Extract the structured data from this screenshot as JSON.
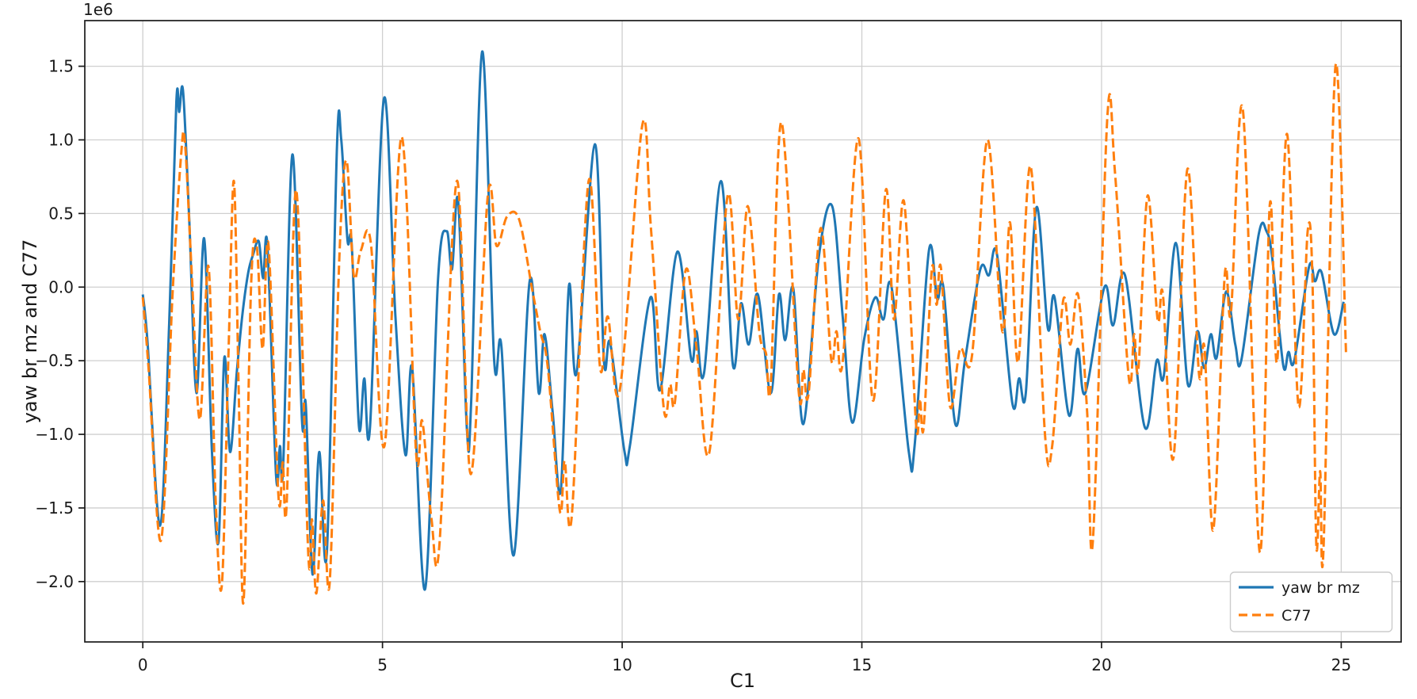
{
  "chart_data": {
    "type": "line",
    "title": "",
    "xlabel": "C1",
    "ylabel": "yaw br mz and C77",
    "y_offset_label": "1e6",
    "y_unit_multiplier": 1000000,
    "grid": true,
    "background_color": "#ffffff",
    "grid_color": "#cfcfcf",
    "spine_color": "#1a1a1a",
    "x_axis": {
      "range": [
        -1.21,
        26.25
      ],
      "tick_values": [
        0,
        5,
        10,
        15,
        20,
        25
      ],
      "tick_labels": [
        "0",
        "5",
        "10",
        "15",
        "20",
        "25"
      ]
    },
    "y_axis": {
      "range": [
        -2.41,
        1.81
      ],
      "tick_values": [
        1.5,
        1.0,
        0.5,
        0.0,
        -0.5,
        -1.0,
        -1.5,
        -2.0
      ],
      "tick_labels": [
        "1.5",
        "1.0",
        "0.5",
        "0.0",
        "−0.5",
        "−1.0",
        "−1.5",
        "−2.0"
      ]
    },
    "legend": {
      "position": "lower right"
    },
    "series": [
      {
        "name": "yaw br mz",
        "color": "#1f77b4",
        "line_style": "solid",
        "points": [
          [
            0.0,
            -0.05
          ],
          [
            0.1,
            -0.38
          ],
          [
            0.36,
            -1.62
          ],
          [
            0.55,
            -0.25
          ],
          [
            0.7,
            1.26
          ],
          [
            0.76,
            1.19
          ],
          [
            0.84,
            1.33
          ],
          [
            0.97,
            0.45
          ],
          [
            1.12,
            -0.72
          ],
          [
            1.28,
            0.33
          ],
          [
            1.44,
            -1.1
          ],
          [
            1.58,
            -1.73
          ],
          [
            1.7,
            -0.48
          ],
          [
            1.82,
            -1.12
          ],
          [
            1.96,
            -0.58
          ],
          [
            2.08,
            -0.18
          ],
          [
            2.2,
            0.1
          ],
          [
            2.3,
            0.22
          ],
          [
            2.42,
            0.31
          ],
          [
            2.51,
            0.06
          ],
          [
            2.6,
            0.28
          ],
          [
            2.78,
            -1.28
          ],
          [
            2.86,
            -1.08
          ],
          [
            2.93,
            -1.2
          ],
          [
            3.12,
            0.9
          ],
          [
            3.32,
            -0.9
          ],
          [
            3.4,
            -0.8
          ],
          [
            3.54,
            -1.95
          ],
          [
            3.68,
            -1.12
          ],
          [
            3.84,
            -1.8
          ],
          [
            4.05,
            0.95
          ],
          [
            4.14,
            1.0
          ],
          [
            4.27,
            0.32
          ],
          [
            4.36,
            0.28
          ],
          [
            4.51,
            -0.95
          ],
          [
            4.62,
            -0.62
          ],
          [
            4.74,
            -0.95
          ],
          [
            5.03,
            1.28
          ],
          [
            5.27,
            -0.2
          ],
          [
            5.48,
            -1.14
          ],
          [
            5.62,
            -0.55
          ],
          [
            5.89,
            -2.05
          ],
          [
            6.16,
            0.06
          ],
          [
            6.34,
            0.38
          ],
          [
            6.45,
            0.12
          ],
          [
            6.58,
            0.58
          ],
          [
            6.76,
            -0.96
          ],
          [
            6.85,
            -0.78
          ],
          [
            7.08,
            1.6
          ],
          [
            7.33,
            -0.5
          ],
          [
            7.48,
            -0.4
          ],
          [
            7.74,
            -1.82
          ],
          [
            8.07,
            0.04
          ],
          [
            8.26,
            -0.72
          ],
          [
            8.38,
            -0.32
          ],
          [
            8.55,
            -0.85
          ],
          [
            8.72,
            -1.38
          ],
          [
            8.89,
            0.01
          ],
          [
            9.05,
            -0.58
          ],
          [
            9.43,
            0.97
          ],
          [
            9.62,
            -0.5
          ],
          [
            9.75,
            -0.38
          ],
          [
            10.05,
            -1.12
          ],
          [
            10.16,
            -1.08
          ],
          [
            10.59,
            -0.07
          ],
          [
            10.79,
            -0.7
          ],
          [
            11.15,
            0.24
          ],
          [
            11.44,
            -0.49
          ],
          [
            11.55,
            -0.3
          ],
          [
            11.71,
            -0.58
          ],
          [
            12.06,
            0.72
          ],
          [
            12.31,
            -0.53
          ],
          [
            12.48,
            -0.11
          ],
          [
            12.64,
            -0.39
          ],
          [
            12.83,
            -0.05
          ],
          [
            13.1,
            -0.72
          ],
          [
            13.27,
            -0.05
          ],
          [
            13.4,
            -0.36
          ],
          [
            13.57,
            -0.01
          ],
          [
            13.78,
            -0.93
          ],
          [
            14.1,
            0.2
          ],
          [
            14.38,
            0.55
          ],
          [
            14.6,
            -0.2
          ],
          [
            14.8,
            -0.92
          ],
          [
            15.05,
            -0.35
          ],
          [
            15.28,
            -0.07
          ],
          [
            15.45,
            -0.22
          ],
          [
            15.62,
            0.0
          ],
          [
            15.98,
            -1.12
          ],
          [
            16.1,
            -1.08
          ],
          [
            16.4,
            0.25
          ],
          [
            16.57,
            -0.08
          ],
          [
            16.7,
            0.0
          ],
          [
            16.95,
            -0.93
          ],
          [
            17.15,
            -0.5
          ],
          [
            17.47,
            0.12
          ],
          [
            17.65,
            0.08
          ],
          [
            17.82,
            0.22
          ],
          [
            18.14,
            -0.79
          ],
          [
            18.28,
            -0.62
          ],
          [
            18.42,
            -0.72
          ],
          [
            18.64,
            0.54
          ],
          [
            18.88,
            -0.28
          ],
          [
            19.02,
            -0.07
          ],
          [
            19.32,
            -0.87
          ],
          [
            19.5,
            -0.42
          ],
          [
            19.66,
            -0.72
          ],
          [
            20.06,
            0.0
          ],
          [
            20.24,
            -0.26
          ],
          [
            20.49,
            0.08
          ],
          [
            20.9,
            -0.95
          ],
          [
            21.15,
            -0.5
          ],
          [
            21.3,
            -0.6
          ],
          [
            21.55,
            0.3
          ],
          [
            21.8,
            -0.66
          ],
          [
            22.0,
            -0.3
          ],
          [
            22.14,
            -0.55
          ],
          [
            22.28,
            -0.32
          ],
          [
            22.4,
            -0.48
          ],
          [
            22.6,
            -0.03
          ],
          [
            22.79,
            -0.39
          ],
          [
            22.92,
            -0.49
          ],
          [
            23.28,
            0.36
          ],
          [
            23.44,
            0.38
          ],
          [
            23.56,
            0.2
          ],
          [
            23.79,
            -0.53
          ],
          [
            23.9,
            -0.44
          ],
          [
            24.02,
            -0.5
          ],
          [
            24.33,
            0.14
          ],
          [
            24.45,
            0.04
          ],
          [
            24.59,
            0.1
          ],
          [
            24.85,
            -0.32
          ],
          [
            25.05,
            -0.1
          ]
        ]
      },
      {
        "name": "C77",
        "color": "#ff7f0e",
        "line_style": "dashed",
        "points": [
          [
            0.0,
            -0.07
          ],
          [
            0.12,
            -0.55
          ],
          [
            0.38,
            -1.72
          ],
          [
            0.62,
            -0.05
          ],
          [
            0.8,
            0.9
          ],
          [
            0.88,
            0.98
          ],
          [
            1.02,
            0.1
          ],
          [
            1.19,
            -0.9
          ],
          [
            1.37,
            0.14
          ],
          [
            1.52,
            -1.45
          ],
          [
            1.65,
            -2.02
          ],
          [
            1.79,
            -0.42
          ],
          [
            1.9,
            0.72
          ],
          [
            2.0,
            -0.7
          ],
          [
            2.1,
            -2.14
          ],
          [
            2.26,
            0.02
          ],
          [
            2.38,
            0.27
          ],
          [
            2.5,
            -0.42
          ],
          [
            2.62,
            0.29
          ],
          [
            2.83,
            -1.42
          ],
          [
            2.92,
            -1.19
          ],
          [
            3.0,
            -1.48
          ],
          [
            3.2,
            0.66
          ],
          [
            3.45,
            -1.8
          ],
          [
            3.53,
            -1.58
          ],
          [
            3.62,
            -2.08
          ],
          [
            3.76,
            -1.45
          ],
          [
            3.9,
            -2.0
          ],
          [
            4.1,
            0.2
          ],
          [
            4.25,
            0.86
          ],
          [
            4.4,
            0.08
          ],
          [
            4.55,
            0.25
          ],
          [
            4.76,
            0.29
          ],
          [
            5.04,
            -1.08
          ],
          [
            5.4,
            1.02
          ],
          [
            5.7,
            -1.12
          ],
          [
            5.83,
            -0.91
          ],
          [
            6.02,
            -1.57
          ],
          [
            6.19,
            -1.74
          ],
          [
            6.55,
            0.72
          ],
          [
            6.84,
            -1.27
          ],
          [
            7.2,
            0.63
          ],
          [
            7.38,
            0.28
          ],
          [
            7.6,
            0.48
          ],
          [
            7.85,
            0.46
          ],
          [
            8.12,
            -0.01
          ],
          [
            8.29,
            -0.3
          ],
          [
            8.45,
            -0.55
          ],
          [
            8.7,
            -1.52
          ],
          [
            8.8,
            -1.18
          ],
          [
            8.95,
            -1.55
          ],
          [
            9.3,
            0.72
          ],
          [
            9.54,
            -0.55
          ],
          [
            9.7,
            -0.2
          ],
          [
            9.95,
            -0.7
          ],
          [
            10.42,
            1.1
          ],
          [
            10.6,
            0.4
          ],
          [
            10.87,
            -0.83
          ],
          [
            11.0,
            -0.66
          ],
          [
            11.1,
            -0.78
          ],
          [
            11.33,
            0.12
          ],
          [
            11.55,
            -0.41
          ],
          [
            11.82,
            -1.12
          ],
          [
            12.2,
            0.62
          ],
          [
            12.42,
            -0.22
          ],
          [
            12.62,
            0.55
          ],
          [
            12.86,
            -0.3
          ],
          [
            13.0,
            -0.45
          ],
          [
            13.1,
            -0.66
          ],
          [
            13.32,
            1.12
          ],
          [
            13.68,
            -0.7
          ],
          [
            13.78,
            -0.56
          ],
          [
            13.89,
            -0.72
          ],
          [
            14.14,
            0.4
          ],
          [
            14.36,
            -0.49
          ],
          [
            14.47,
            -0.3
          ],
          [
            14.6,
            -0.51
          ],
          [
            14.93,
            1.01
          ],
          [
            15.23,
            -0.77
          ],
          [
            15.5,
            0.66
          ],
          [
            15.67,
            -0.22
          ],
          [
            15.88,
            0.58
          ],
          [
            16.13,
            -0.93
          ],
          [
            16.21,
            -0.76
          ],
          [
            16.29,
            -0.95
          ],
          [
            16.46,
            0.12
          ],
          [
            16.56,
            -0.12
          ],
          [
            16.65,
            0.13
          ],
          [
            16.84,
            -0.81
          ],
          [
            17.05,
            -0.42
          ],
          [
            17.3,
            -0.46
          ],
          [
            17.62,
            1.0
          ],
          [
            17.93,
            -0.3
          ],
          [
            18.09,
            0.44
          ],
          [
            18.26,
            -0.51
          ],
          [
            18.52,
            0.82
          ],
          [
            18.82,
            -1.0
          ],
          [
            18.97,
            -1.08
          ],
          [
            19.2,
            -0.09
          ],
          [
            19.35,
            -0.39
          ],
          [
            19.51,
            -0.05
          ],
          [
            19.7,
            -0.85
          ],
          [
            19.82,
            -1.72
          ],
          [
            20.12,
            1.15
          ],
          [
            20.28,
            0.78
          ],
          [
            20.57,
            -0.62
          ],
          [
            20.68,
            -0.32
          ],
          [
            20.77,
            -0.55
          ],
          [
            20.96,
            0.62
          ],
          [
            21.17,
            -0.22
          ],
          [
            21.28,
            -0.05
          ],
          [
            21.5,
            -1.16
          ],
          [
            21.79,
            0.8
          ],
          [
            22.03,
            -0.58
          ],
          [
            22.15,
            -0.42
          ],
          [
            22.33,
            -1.65
          ],
          [
            22.57,
            0.08
          ],
          [
            22.7,
            -0.17
          ],
          [
            22.95,
            1.2
          ],
          [
            23.3,
            -1.8
          ],
          [
            23.51,
            0.56
          ],
          [
            23.66,
            -0.51
          ],
          [
            23.87,
            1.04
          ],
          [
            24.11,
            -0.81
          ],
          [
            24.3,
            0.38
          ],
          [
            24.4,
            0.05
          ],
          [
            24.48,
            -1.75
          ],
          [
            24.56,
            -1.25
          ],
          [
            24.63,
            -1.78
          ],
          [
            24.88,
            1.5
          ],
          [
            25.1,
            -0.45
          ]
        ]
      }
    ]
  }
}
